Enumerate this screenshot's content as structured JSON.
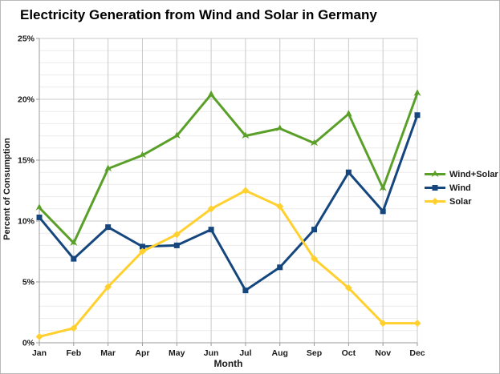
{
  "chart_data": {
    "type": "line",
    "title": "Electricity Generation from Wind and Solar in Germany",
    "xlabel": "Month",
    "ylabel": "Percent of Consumption",
    "categories": [
      "Jan",
      "Feb",
      "Mar",
      "Apr",
      "May",
      "Jun",
      "Jul",
      "Aug",
      "Sep",
      "Oct",
      "Nov",
      "Dec"
    ],
    "series": [
      {
        "name": "Wind+Solar",
        "color": "#5aa028",
        "marker": "arrow",
        "values": [
          11.1,
          8.2,
          14.3,
          15.4,
          17.0,
          20.4,
          17.0,
          17.6,
          16.4,
          18.8,
          12.7,
          20.5
        ]
      },
      {
        "name": "Wind",
        "color": "#15477e",
        "marker": "square",
        "values": [
          10.3,
          6.9,
          9.5,
          7.9,
          8.0,
          9.3,
          4.3,
          6.2,
          9.3,
          14.0,
          10.8,
          18.7
        ]
      },
      {
        "name": "Solar",
        "color": "#ffd02e",
        "marker": "diamond",
        "values": [
          0.5,
          1.2,
          4.6,
          7.5,
          8.9,
          11.0,
          12.5,
          11.2,
          6.9,
          4.5,
          1.6,
          1.6
        ]
      }
    ],
    "ylim": [
      0,
      25
    ],
    "ytick_step": 5,
    "yminor_step": 1,
    "ytick_labels": [
      "0%",
      "5%",
      "10%",
      "15%",
      "20%",
      "25%"
    ],
    "grid": true,
    "legend_position": "right"
  }
}
